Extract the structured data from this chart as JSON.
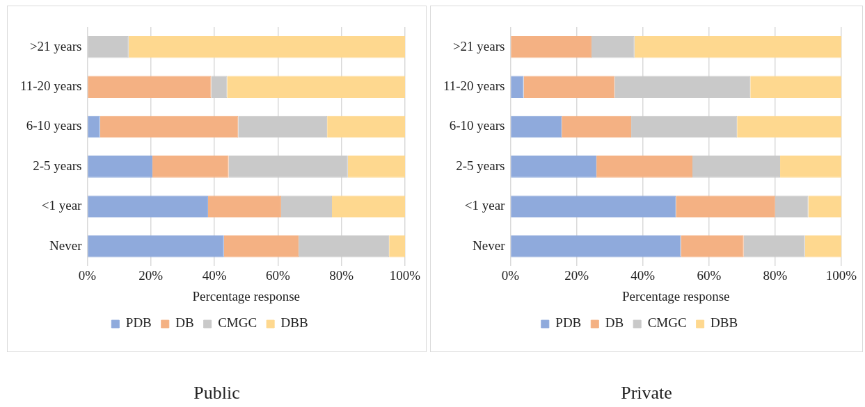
{
  "chart_data": [
    {
      "type": "bar",
      "orientation": "horizontal",
      "stacked": true,
      "title": "Public",
      "xlabel": "Percentage response",
      "categories": [
        ">21 years",
        "11-20 years",
        "6-10 years",
        "2-5 years",
        "<1 year",
        "Never"
      ],
      "series": [
        {
          "name": "PDB",
          "color": "#8faadc",
          "values": [
            0,
            0,
            4,
            20.5,
            38,
            43
          ]
        },
        {
          "name": "DB",
          "color": "#f4b183",
          "values": [
            0,
            39,
            43.5,
            24,
            23,
            23.5
          ]
        },
        {
          "name": "CMGC",
          "color": "#c9c9c9",
          "values": [
            13,
            5,
            28,
            37.5,
            16,
            28.5
          ]
        },
        {
          "name": "DBB",
          "color": "#fed88f",
          "values": [
            87,
            56,
            24.5,
            18,
            23,
            5
          ]
        }
      ],
      "xlim": [
        0,
        100
      ],
      "xticks": [
        {
          "value": 0,
          "label": "0%"
        },
        {
          "value": 20,
          "label": "20%"
        },
        {
          "value": 40,
          "label": "40%"
        },
        {
          "value": 60,
          "label": "60%"
        },
        {
          "value": 80,
          "label": "80%"
        },
        {
          "value": 100,
          "label": "100%"
        }
      ],
      "grid": "x",
      "legend": "bottom"
    },
    {
      "type": "bar",
      "orientation": "horizontal",
      "stacked": true,
      "title": "Private",
      "xlabel": "Percentage response",
      "categories": [
        ">21 years",
        "11-20 years",
        "6-10 years",
        "2-5 years",
        "<1 year",
        "Never"
      ],
      "series": [
        {
          "name": "PDB",
          "color": "#8faadc",
          "values": [
            0,
            4,
            15.5,
            26,
            50,
            51.5
          ]
        },
        {
          "name": "DB",
          "color": "#f4b183",
          "values": [
            24.5,
            27.5,
            21,
            29,
            30,
            19
          ]
        },
        {
          "name": "CMGC",
          "color": "#c9c9c9",
          "values": [
            13,
            41,
            32,
            26.5,
            10,
            18.5
          ]
        },
        {
          "name": "DBB",
          "color": "#fed88f",
          "values": [
            62.5,
            27.5,
            31.5,
            18.5,
            10,
            11
          ]
        }
      ],
      "xlim": [
        0,
        100
      ],
      "xticks": [
        {
          "value": 0,
          "label": "0%"
        },
        {
          "value": 20,
          "label": "20%"
        },
        {
          "value": 40,
          "label": "40%"
        },
        {
          "value": 60,
          "label": "60%"
        },
        {
          "value": 80,
          "label": "80%"
        },
        {
          "value": 100,
          "label": "100%"
        }
      ],
      "grid": "x",
      "legend": "bottom"
    }
  ]
}
